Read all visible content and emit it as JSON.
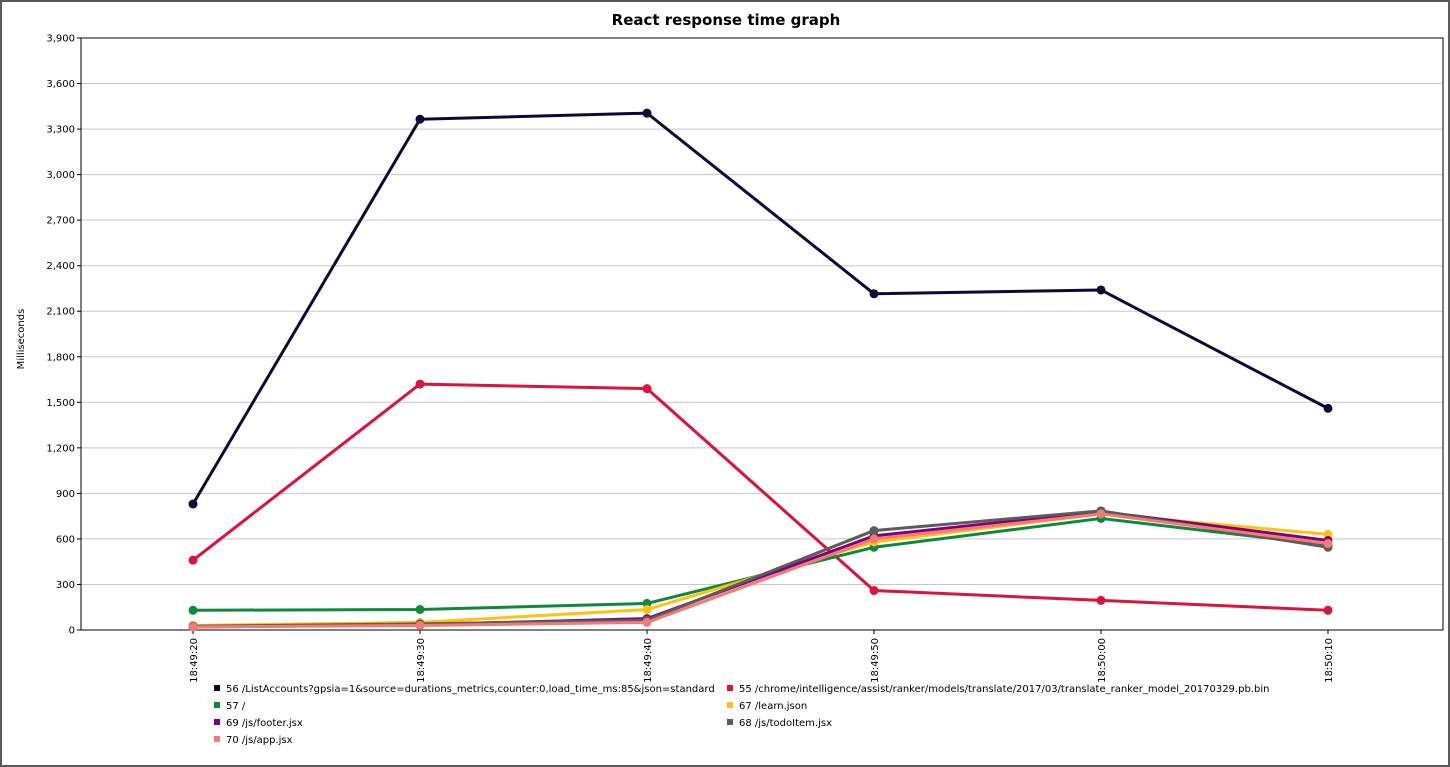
{
  "chart_data": {
    "type": "line",
    "title": "React response time graph",
    "ylabel": "Milliseconds",
    "xlabel": "",
    "ylim": [
      0,
      3900
    ],
    "y_ticks": [
      "0",
      "300",
      "600",
      "900",
      "1,200",
      "1,500",
      "1,800",
      "2,100",
      "2,400",
      "2,700",
      "3,000",
      "3,300",
      "3,600",
      "3,900"
    ],
    "y_tick_values": [
      0,
      300,
      600,
      900,
      1200,
      1500,
      1800,
      2100,
      2400,
      2700,
      3000,
      3300,
      3600,
      3900
    ],
    "x": [
      "18:49:20",
      "18:49:30",
      "18:49:40",
      "18:49:50",
      "18:50:00",
      "18:50:10"
    ],
    "grid": true,
    "legend_position": "bottom",
    "series": [
      {
        "name": "56 /ListAccounts?gpsia=1&source=durations_metrics,counter:0,load_time_ms:85&json=standard",
        "color": "#0a0a3a",
        "values": [
          830,
          3365,
          3405,
          2215,
          2240,
          1460
        ]
      },
      {
        "name": "55 /chrome/intelligence/assist/ranker/models/translate/2017/03/translate_ranker_model_20170329.pb.bin",
        "color": "#dc143c",
        "values": [
          460,
          1620,
          1590,
          260,
          195,
          130
        ]
      },
      {
        "name": "57 /",
        "color": "#0c8a3c",
        "values": [
          130,
          135,
          175,
          545,
          735,
          560
        ]
      },
      {
        "name": "67 /learn.json",
        "color": "#ffc20e",
        "values": [
          30,
          50,
          135,
          580,
          765,
          630
        ]
      },
      {
        "name": "69 /js/footer.jsx",
        "color": "#7d0080",
        "values": [
          20,
          35,
          75,
          620,
          780,
          590
        ]
      },
      {
        "name": "68 /js/todoItem.jsx",
        "color": "#5c5c5c",
        "values": [
          25,
          40,
          65,
          655,
          785,
          545
        ]
      },
      {
        "name": "70 /js/app.jsx",
        "color": "#f57a73",
        "values": [
          20,
          30,
          50,
          600,
          765,
          570
        ]
      }
    ]
  }
}
